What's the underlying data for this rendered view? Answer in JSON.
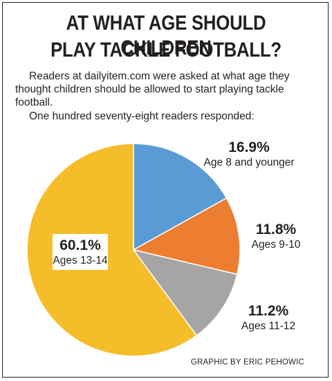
{
  "chart_data": {
    "type": "pie",
    "title_line1": "AT WHAT AGE SHOULD CHILDREN",
    "title_line2": "PLAY TACKLE FOOTBALL?",
    "subtitle": "Readers at dailyitem.com were asked at what age they thought children should be allowed to start playing tackle football.",
    "note": "One hundred seventy-eight readers responded:",
    "categories": [
      "Age 8 and younger",
      "Ages 9-10",
      "Ages 11-12",
      "Ages 13-14"
    ],
    "values": [
      16.9,
      11.8,
      11.2,
      60.1
    ],
    "value_labels": [
      "16.9%",
      "11.8%",
      "11.2%",
      "60.1%"
    ],
    "colors": [
      "#5b9bd5",
      "#ed7d31",
      "#a5a5a5",
      "#f6bd2a"
    ],
    "start_angle_deg": 0,
    "direction": "clockwise",
    "credit": "GRAPHIC BY ERIC PEHOWIC"
  }
}
